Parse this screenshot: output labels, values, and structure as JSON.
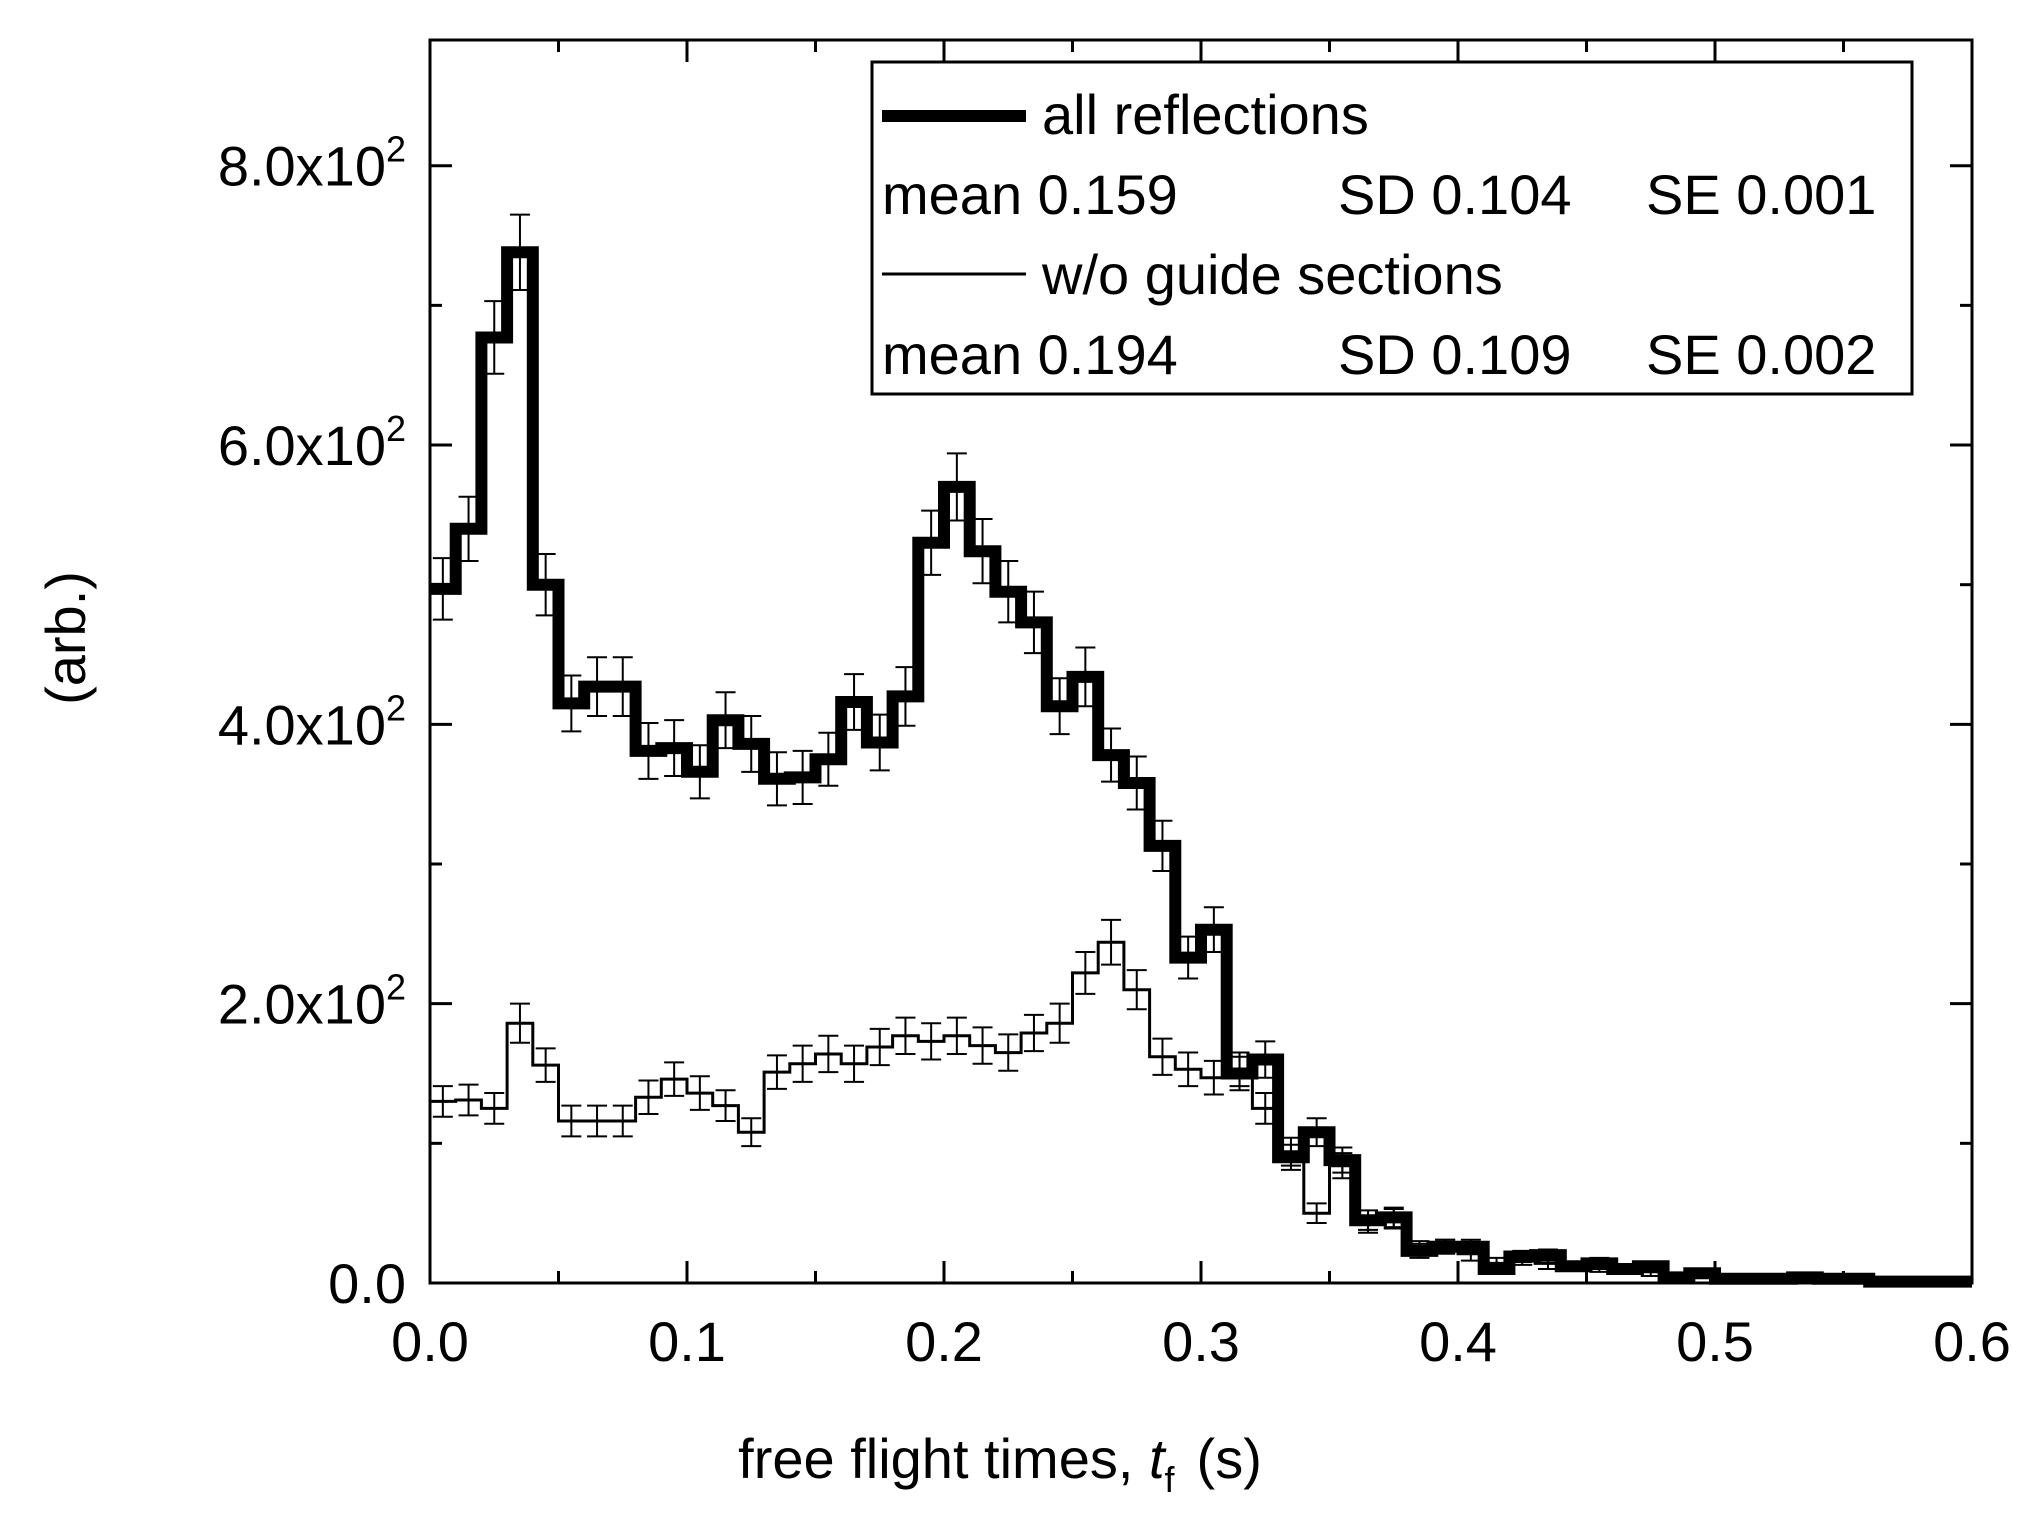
{
  "chart_data": {
    "type": "line",
    "style": "step-histogram-with-error-bars",
    "xlabel": "free flight times, t_f  (s)",
    "xlabel_parts": {
      "prefix": "free flight times, ",
      "var": "t",
      "sub": "f",
      "suffix": "(s)"
    },
    "ylabel": "(arb.)",
    "xlim": [
      0.0,
      0.6
    ],
    "ylim": [
      0,
      890
    ],
    "x_ticks": [
      0.0,
      0.1,
      0.2,
      0.3,
      0.4,
      0.5,
      0.6
    ],
    "x_tick_labels": [
      "0.0",
      "0.1",
      "0.2",
      "0.3",
      "0.4",
      "0.5",
      "0.6"
    ],
    "y_ticks": [
      0,
      200,
      400,
      600,
      800
    ],
    "y_tick_labels": [
      {
        "mantissa": "0.0",
        "exp": ""
      },
      {
        "mantissa": "2.0x10",
        "exp": "2"
      },
      {
        "mantissa": "4.0x10",
        "exp": "2"
      },
      {
        "mantissa": "6.0x10",
        "exp": "2"
      },
      {
        "mantissa": "8.0x10",
        "exp": "2"
      }
    ],
    "bin_width": 0.01,
    "legend": {
      "position": "top-right",
      "entries": [
        {
          "label": "all reflections",
          "stats": {
            "mean": "mean 0.159",
            "sd": "SD 0.104",
            "se": "SE 0.001"
          }
        },
        {
          "label": "w/o guide sections",
          "stats": {
            "mean": "mean 0.194",
            "sd": "SD 0.109",
            "se": "SE 0.002"
          }
        }
      ]
    },
    "series": [
      {
        "name": "all reflections",
        "line": "thick",
        "x": [
          0.005,
          0.015,
          0.025,
          0.035,
          0.045,
          0.055,
          0.065,
          0.075,
          0.085,
          0.095,
          0.105,
          0.115,
          0.125,
          0.135,
          0.145,
          0.155,
          0.165,
          0.175,
          0.185,
          0.195,
          0.205,
          0.215,
          0.225,
          0.235,
          0.245,
          0.255,
          0.265,
          0.275,
          0.285,
          0.295,
          0.305,
          0.315,
          0.325,
          0.335,
          0.345,
          0.355,
          0.365,
          0.375,
          0.385,
          0.395,
          0.405,
          0.415,
          0.425,
          0.435,
          0.445,
          0.455,
          0.465,
          0.475,
          0.485,
          0.495,
          0.505,
          0.515,
          0.525,
          0.535,
          0.545,
          0.555,
          0.565,
          0.575,
          0.585,
          0.595
        ],
        "values": [
          497,
          540,
          677,
          738,
          500,
          415,
          427,
          427,
          381,
          383,
          366,
          403,
          386,
          361,
          362,
          375,
          416,
          387,
          420,
          530,
          570,
          524,
          495,
          473,
          413,
          434,
          378,
          358,
          313,
          233,
          253,
          150,
          160,
          90,
          108,
          88,
          45,
          47,
          23,
          26,
          26,
          10,
          19,
          20,
          12,
          14,
          10,
          12,
          4,
          7,
          3,
          3,
          3,
          4,
          3,
          3,
          1,
          1,
          1,
          1
        ],
        "errors": [
          22,
          23,
          26,
          27,
          22,
          20,
          21,
          21,
          20,
          20,
          19,
          20,
          20,
          19,
          19,
          19,
          20,
          20,
          21,
          23,
          24,
          23,
          22,
          22,
          20,
          21,
          19,
          19,
          18,
          15,
          16,
          12,
          13,
          9,
          10,
          9,
          7,
          7,
          5,
          5,
          5,
          3,
          4,
          4,
          3,
          4,
          3,
          3,
          2,
          3,
          2,
          2,
          2,
          2,
          2,
          2,
          1,
          1,
          1,
          1
        ]
      },
      {
        "name": "w/o guide sections",
        "line": "thin",
        "x": [
          0.005,
          0.015,
          0.025,
          0.035,
          0.045,
          0.055,
          0.065,
          0.075,
          0.085,
          0.095,
          0.105,
          0.115,
          0.125,
          0.135,
          0.145,
          0.155,
          0.165,
          0.175,
          0.185,
          0.195,
          0.205,
          0.215,
          0.225,
          0.235,
          0.245,
          0.255,
          0.265,
          0.275,
          0.285,
          0.295,
          0.305,
          0.315,
          0.325,
          0.335,
          0.345,
          0.355,
          0.365,
          0.375,
          0.385,
          0.395,
          0.405,
          0.415,
          0.425,
          0.435,
          0.445,
          0.455,
          0.465,
          0.475,
          0.485,
          0.495,
          0.505,
          0.515,
          0.525,
          0.535,
          0.545,
          0.555,
          0.565,
          0.575,
          0.585,
          0.595
        ],
        "values": [
          130,
          131,
          125,
          186,
          156,
          116,
          116,
          116,
          133,
          146,
          136,
          127,
          108,
          151,
          157,
          164,
          157,
          169,
          177,
          173,
          177,
          170,
          165,
          179,
          186,
          222,
          244,
          210,
          162,
          153,
          147,
          153,
          125,
          94,
          50,
          84,
          42,
          46,
          25,
          26,
          21,
          14,
          17,
          14,
          12,
          11,
          10,
          8,
          5,
          6,
          3,
          4,
          3,
          3,
          2,
          2,
          1,
          1,
          1,
          1
        ],
        "errors": [
          11,
          11,
          11,
          14,
          12,
          11,
          11,
          11,
          12,
          12,
          12,
          11,
          10,
          12,
          13,
          13,
          13,
          13,
          13,
          13,
          13,
          13,
          13,
          13,
          14,
          15,
          16,
          14,
          13,
          12,
          12,
          12,
          11,
          10,
          7,
          9,
          6,
          7,
          5,
          5,
          5,
          4,
          4,
          4,
          3,
          3,
          3,
          3,
          2,
          2,
          2,
          2,
          2,
          2,
          1,
          1,
          1,
          1,
          1,
          1
        ]
      }
    ]
  }
}
